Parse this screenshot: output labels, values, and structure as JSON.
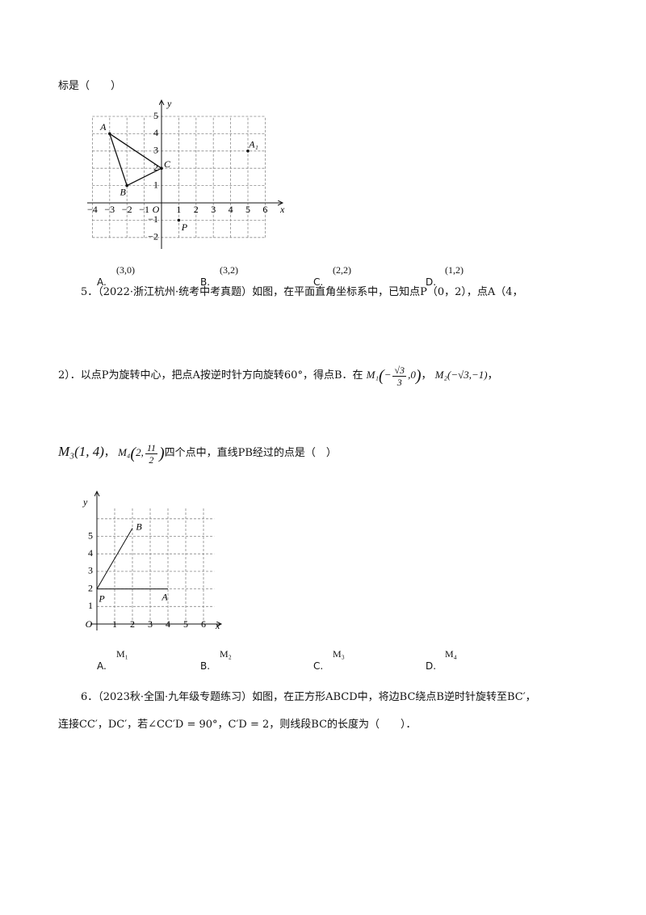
{
  "q4": {
    "tail": "标是（　　）",
    "figure": {
      "x_label": "x",
      "y_label": "y",
      "origin": "O",
      "x_ticks": [
        "−4",
        "−3",
        "−2",
        "−1",
        "1",
        "2",
        "3",
        "4",
        "5",
        "6"
      ],
      "y_ticks": [
        "5",
        "4",
        "3",
        "2",
        "1",
        "−1",
        "−2"
      ],
      "points": [
        "A",
        "B",
        "C",
        "A₁",
        "P"
      ]
    },
    "options": [
      {
        "letter": "A.",
        "text": "(3,0)"
      },
      {
        "letter": "B.",
        "text": "(3,2)"
      },
      {
        "letter": "C.",
        "text": "(2,2)"
      },
      {
        "letter": "D.",
        "text": "(1,2)"
      }
    ]
  },
  "q5": {
    "line1": "5．（2022·浙江杭州·统考中考真题）如图，在平面直角坐标系中，已知点P（0，2），点A（4，",
    "line2": "2）．以点P为旋转中心，把点A按逆时针方向旋转60°，得点B．在",
    "m1": {
      "name": "M₁",
      "num": "√3",
      "den": "3",
      "sign": "−",
      "rest": ",0"
    },
    "sep1": "，",
    "m2": "M₂(−√3,−1)",
    "sep2": "，",
    "m3": "M₃(1, 4)",
    "sep3": "，",
    "m4": {
      "name": "M₄",
      "pre": "2,",
      "num": "11",
      "den": "2"
    },
    "line3_tail": "四个点中，直线PB经过的点是（　）",
    "figure": {
      "x_label": "x",
      "y_label": "y",
      "origin": "O",
      "x_ticks": [
        "1",
        "2",
        "3",
        "4",
        "5",
        "6"
      ],
      "y_ticks": [
        "1",
        "2",
        "3",
        "4",
        "5"
      ],
      "points": [
        "P",
        "A",
        "B"
      ]
    },
    "options": [
      {
        "letter": "A.",
        "text": "M₁"
      },
      {
        "letter": "B.",
        "text": "M₂"
      },
      {
        "letter": "C.",
        "text": "M₃"
      },
      {
        "letter": "D.",
        "text": "M₄"
      }
    ]
  },
  "q6": {
    "line1": "6．（2023秋·全国·九年级专题练习）如图，在正方形ABCD中，将边BC绕点B逆时针旋转至BC′，",
    "line2": "连接CC′，DC′，若∠CC′D = 90°，C′D = 2，则线段BC的长度为（　　）．"
  }
}
